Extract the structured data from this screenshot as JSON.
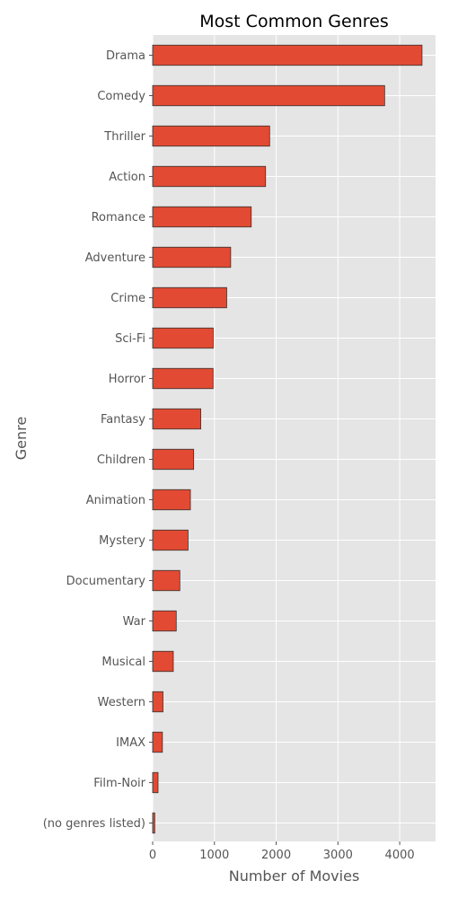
{
  "chart_data": {
    "type": "bar",
    "orientation": "horizontal",
    "title": "Most Common Genres",
    "xlabel": "Number of Movies",
    "ylabel": "Genre",
    "categories": [
      "Drama",
      "Comedy",
      "Thriller",
      "Action",
      "Romance",
      "Adventure",
      "Crime",
      "Sci-Fi",
      "Horror",
      "Fantasy",
      "Children",
      "Animation",
      "Mystery",
      "Documentary",
      "War",
      "Musical",
      "Western",
      "IMAX",
      "Film-Noir",
      "(no genres listed)"
    ],
    "values": [
      4361,
      3756,
      1894,
      1828,
      1596,
      1263,
      1199,
      980,
      978,
      779,
      664,
      611,
      573,
      440,
      382,
      334,
      167,
      158,
      87,
      34
    ],
    "xlim": [
      0,
      4580
    ],
    "xticks": [
      "0",
      "1000",
      "2000",
      "3000",
      "4000"
    ],
    "grid": true,
    "colors": {
      "bar_fill": "#e24a33",
      "bar_edge": "#333333",
      "plot_background": "#e5e5e5",
      "grid": "#ffffff"
    }
  }
}
